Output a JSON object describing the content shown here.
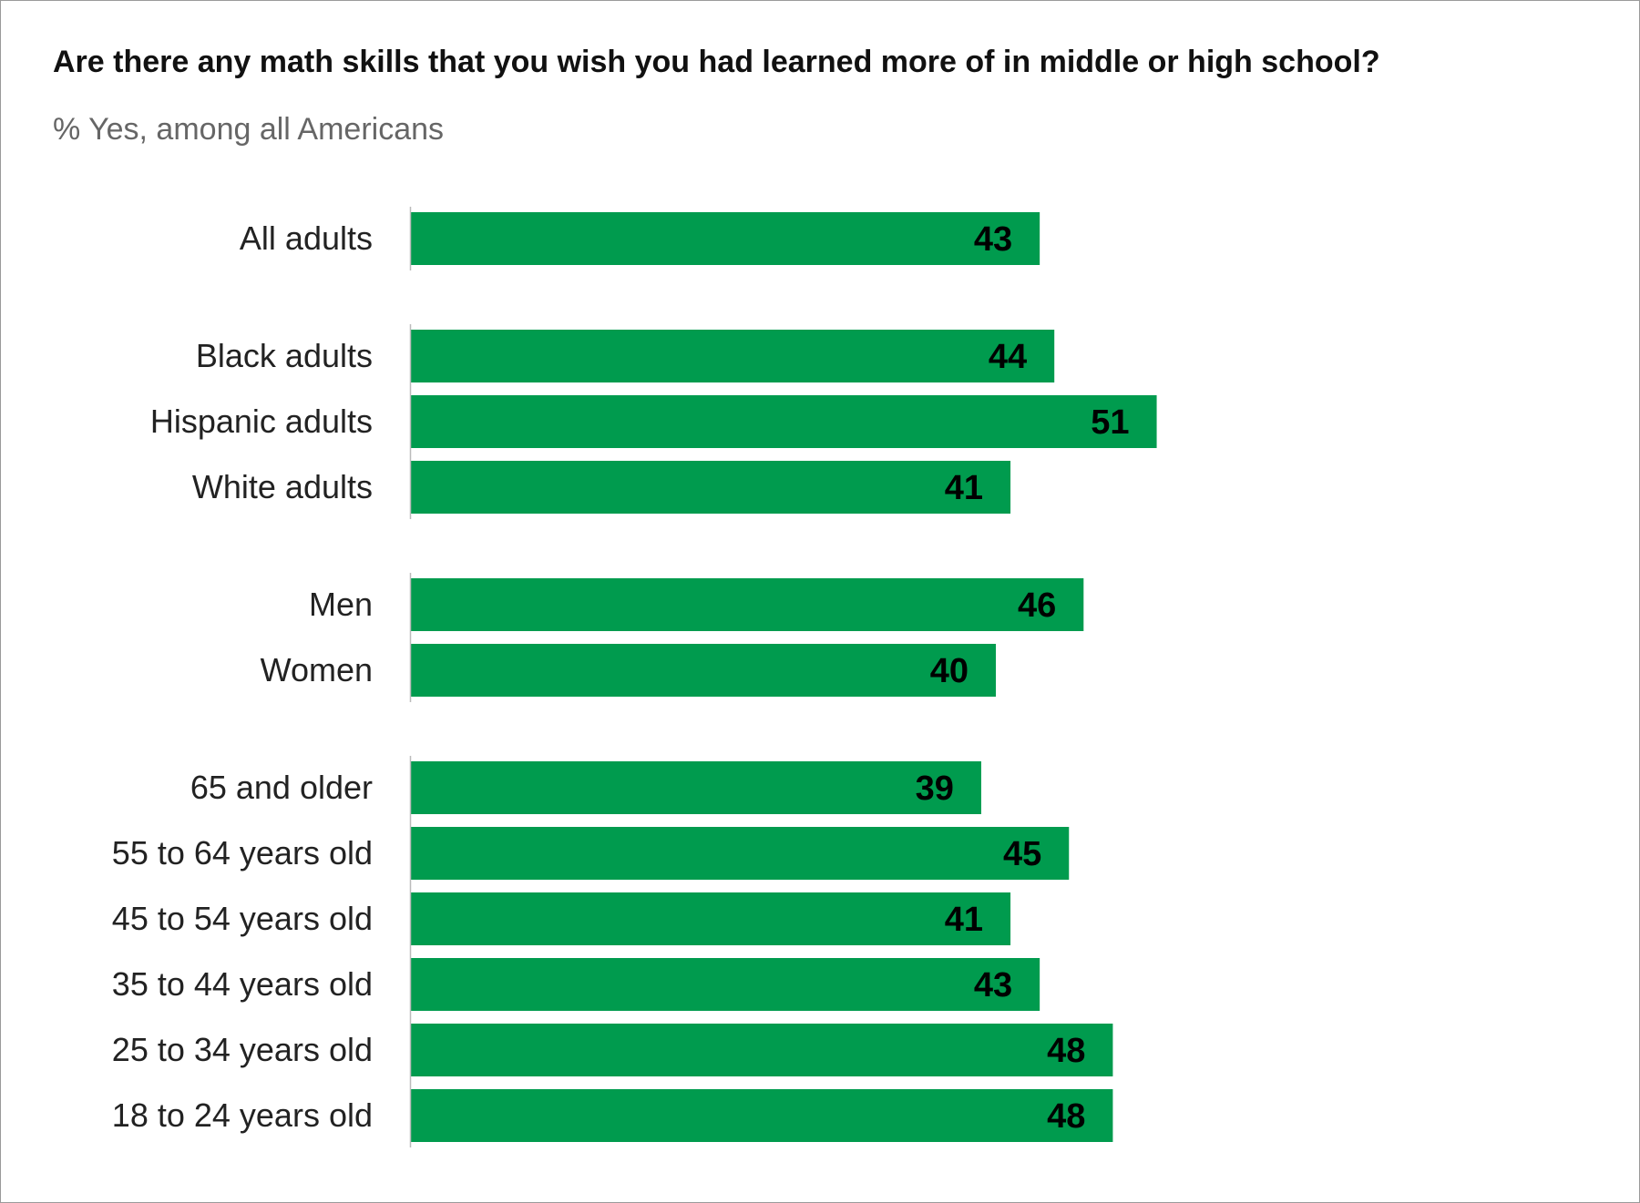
{
  "chart_data": {
    "type": "bar",
    "orientation": "horizontal",
    "title": "Are there any math skills that you wish you had learned more of in middle or high school?",
    "subtitle": "% Yes, among all Americans",
    "bar_color": "#009B4E",
    "label_color": "#000000",
    "xlim": [
      0,
      100
    ],
    "groups": [
      {
        "categories": [
          "All adults"
        ],
        "values": [
          43
        ]
      },
      {
        "categories": [
          "Black adults",
          "Hispanic adults",
          "White adults"
        ],
        "values": [
          44,
          51,
          41
        ]
      },
      {
        "categories": [
          "Men",
          "Women"
        ],
        "values": [
          46,
          40
        ]
      },
      {
        "categories": [
          "65 and older",
          "55 to 64 years old",
          "45 to 54 years old",
          "35 to 44 years old",
          "25 to 34 years old",
          "18 to 24 years old"
        ],
        "values": [
          39,
          45,
          41,
          43,
          48,
          48
        ]
      }
    ]
  }
}
